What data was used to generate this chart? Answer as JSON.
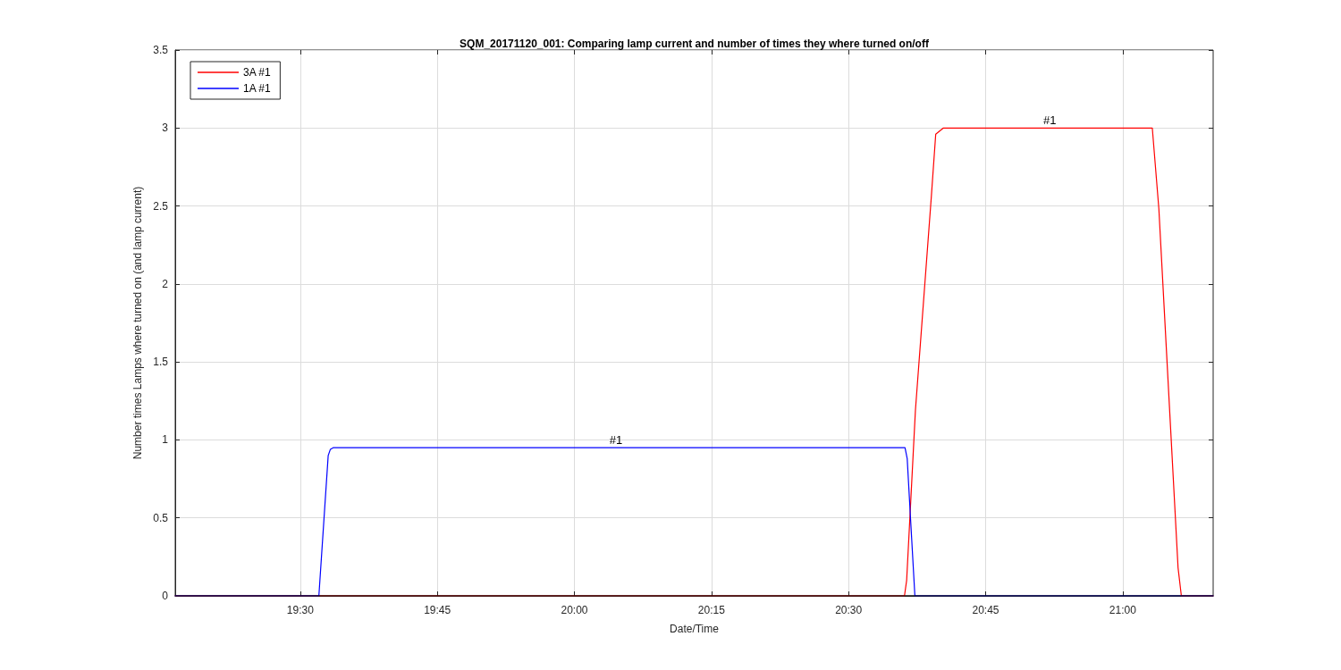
{
  "chart_data": {
    "type": "line",
    "title": "SQM_20171120_001: Comparing lamp current and number of times they where turned on/off",
    "xlabel": "Date/Time",
    "ylabel": "Number times Lamps where turned on (and lamp current)",
    "series": [
      {
        "name": "3A #1",
        "color": "#ff0000",
        "x": [
          19.272,
          20.602,
          20.606,
          20.622,
          20.651,
          20.659,
          20.673,
          20.867,
          21.054,
          21.066,
          21.101,
          21.107,
          21.165
        ],
        "values": [
          0,
          0,
          0.1,
          1.19,
          2.56,
          2.96,
          3,
          3,
          3,
          2.48,
          0.18,
          0,
          0
        ]
      },
      {
        "name": "1A #1",
        "color": "#0000ff",
        "x": [
          19.272,
          19.534,
          19.551,
          19.555,
          19.56,
          20.076,
          20.603,
          20.607,
          20.613,
          20.621,
          21.165
        ],
        "values": [
          0,
          0,
          0.9,
          0.94,
          0.95,
          0.95,
          0.95,
          0.88,
          0.5,
          0,
          0
        ]
      },
      {
        "color": "#000000",
        "x": [
          19.272,
          21.165
        ],
        "values": [
          0,
          0
        ]
      }
    ],
    "xlim": [
      19.272,
      21.165
    ],
    "xticks": [
      {
        "value": 19.5,
        "label": "19:30"
      },
      {
        "value": 19.75,
        "label": "19:45"
      },
      {
        "value": 20,
        "label": "20:00"
      },
      {
        "value": 20.25,
        "label": "20:15"
      },
      {
        "value": 20.5,
        "label": "20:30"
      },
      {
        "value": 20.75,
        "label": "20:45"
      },
      {
        "value": 21,
        "label": "21:00"
      }
    ],
    "ylim": [
      0,
      3.5
    ],
    "yticks": [
      0,
      0.5,
      1,
      1.5,
      2,
      2.5,
      3,
      3.5
    ],
    "annotations": [
      {
        "text": "#1",
        "x": 20.076,
        "y": 0.95
      },
      {
        "text": "#1",
        "x": 20.867,
        "y": 3
      }
    ],
    "grid": true,
    "legend": "top left"
  }
}
